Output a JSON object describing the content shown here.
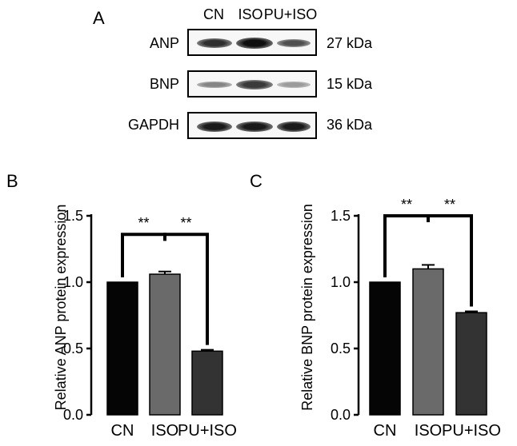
{
  "panels": {
    "a": "A",
    "b": "B",
    "c": "C"
  },
  "blot": {
    "lanes": [
      "CN",
      "ISO",
      "PU+ISO"
    ],
    "rows": [
      {
        "protein": "ANP",
        "size": "27 kDa",
        "intensity": [
          0.85,
          1.0,
          0.7
        ]
      },
      {
        "protein": "BNP",
        "size": "15 kDa",
        "intensity": [
          0.45,
          0.8,
          0.35
        ]
      },
      {
        "protein": "GAPDH",
        "size": "36 kDa",
        "intensity": [
          0.95,
          0.95,
          0.95
        ]
      }
    ]
  },
  "bar_colors": [
    "#050505",
    "#6a6a6a",
    "#333333"
  ],
  "chart_data": [
    {
      "type": "bar",
      "panel": "B",
      "categories": [
        "CN",
        "ISO",
        "PU+ISO"
      ],
      "values": [
        1.0,
        1.06,
        0.48
      ],
      "errors": [
        0.0,
        0.02,
        0.01
      ],
      "ylabel": "Relative ANP protein expression",
      "xlabel": "",
      "ylim": [
        0,
        1.5
      ],
      "yticks": [
        "0.0",
        "0.5",
        "1.0",
        "1.5"
      ],
      "significance": [
        {
          "from": 0,
          "to": 1,
          "label": "**"
        },
        {
          "from": 1,
          "to": 2,
          "label": "**"
        }
      ]
    },
    {
      "type": "bar",
      "panel": "C",
      "categories": [
        "CN",
        "ISO",
        "PU+ISO"
      ],
      "values": [
        1.0,
        1.1,
        0.77
      ],
      "errors": [
        0.0,
        0.03,
        0.01
      ],
      "ylabel": "Relative BNP protein expression",
      "xlabel": "",
      "ylim": [
        0,
        1.5
      ],
      "yticks": [
        "0.0",
        "0.5",
        "1.0",
        "1.5"
      ],
      "significance": [
        {
          "from": 0,
          "to": 1,
          "label": "**"
        },
        {
          "from": 1,
          "to": 2,
          "label": "**"
        }
      ]
    }
  ]
}
